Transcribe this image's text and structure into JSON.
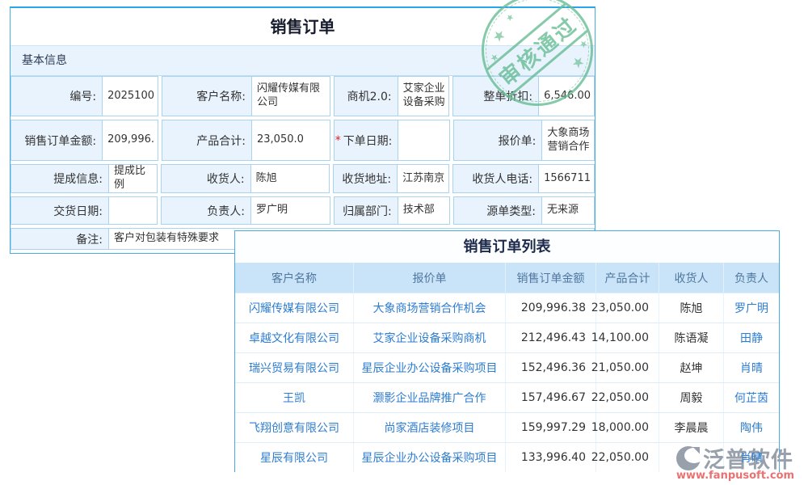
{
  "form": {
    "title": "销售订单",
    "section": "基本信息",
    "required_mark": "*",
    "rows": [
      [
        {
          "label": "编号:",
          "value": "2025100"
        },
        {
          "label": "客户名称:",
          "value": "闪耀传媒有限公司"
        },
        {
          "label": "商机2.0:",
          "value": "艾家企业设备采购"
        },
        {
          "label": "整单折扣:",
          "value": "6,546.00"
        }
      ],
      [
        {
          "label": "销售订单金额:",
          "value": "209,996."
        },
        {
          "label": "产品合计:",
          "value": "23,050.0"
        },
        {
          "label": "下单日期:",
          "value": ""
        },
        {
          "label": "报价单:",
          "value": "大象商场营销合作"
        }
      ],
      [
        {
          "label": "提成信息:",
          "value": "提成比例"
        },
        {
          "label": "收货人:",
          "value": "陈旭"
        },
        {
          "label": "收货地址:",
          "value": "江苏南京"
        },
        {
          "label": "收货人电话:",
          "value": "1566711"
        }
      ],
      [
        {
          "label": "交货日期:",
          "value": ""
        },
        {
          "label": "负责人:",
          "value": "罗广明"
        },
        {
          "label": "归属部门:",
          "value": "技术部"
        },
        {
          "label": "源单类型:",
          "value": "无来源"
        }
      ]
    ],
    "remark": {
      "label": "备注:",
      "value": "客户对包装有特殊要求"
    }
  },
  "stamp": {
    "text": "审核通过",
    "star": "★",
    "color": "#67bd95"
  },
  "list": {
    "title": "销售订单列表",
    "columns": [
      "客户名称",
      "报价单",
      "销售订单金额",
      "产品合计",
      "收货人",
      "负责人"
    ],
    "rows": [
      {
        "customer": "闪耀传媒有限公司",
        "quote": "大象商场营销合作机会",
        "amount": "209,996.38",
        "total": "23,050.00",
        "consignee": "陈旭",
        "owner": "罗广明"
      },
      {
        "customer": "卓越文化有限公司",
        "quote": "艾家企业设备采购商机",
        "amount": "212,496.43",
        "total": "14,100.00",
        "consignee": "陈语凝",
        "owner": "田静"
      },
      {
        "customer": "瑞兴贸易有限公司",
        "quote": "星辰企业办公设备采购项目",
        "amount": "152,496.36",
        "total": "21,050.00",
        "consignee": "赵坤",
        "owner": "肖晴"
      },
      {
        "customer": "王凯",
        "quote": "灏影企业品牌推广合作",
        "amount": "157,496.67",
        "total": "22,050.00",
        "consignee": "周毅",
        "owner": "何芷茵"
      },
      {
        "customer": "飞翔创意有限公司",
        "quote": "尚家酒店装修项目",
        "amount": "159,997.29",
        "total": "18,000.00",
        "consignee": "李晨晨",
        "owner": "陶伟"
      },
      {
        "customer": "星辰有限公司",
        "quote": "星辰企业办公设备采购项目",
        "amount": "133,996.40",
        "total": "22,050.00",
        "consignee": "",
        "owner": "肖晴"
      }
    ]
  },
  "watermark": {
    "brand": "泛普软件",
    "url": "www.fanpusoft.com"
  }
}
